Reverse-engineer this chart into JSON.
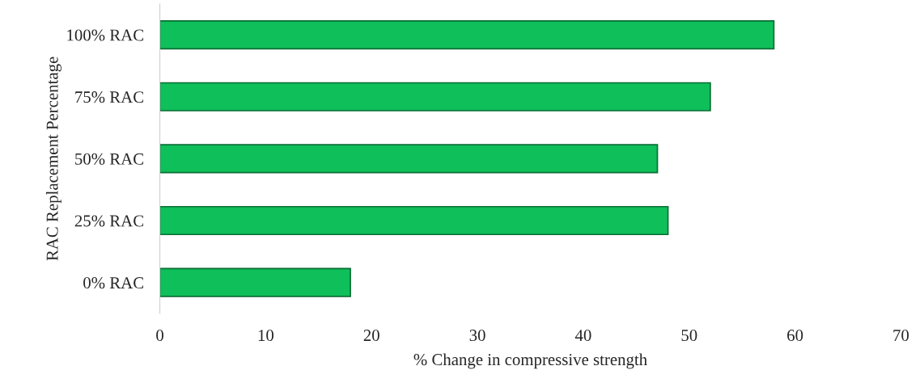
{
  "chart_data": {
    "type": "bar",
    "orientation": "horizontal",
    "categories": [
      "100% RAC",
      "75% RAC",
      "50% RAC",
      "25% RAC",
      "0% RAC"
    ],
    "values": [
      58,
      52,
      47,
      48,
      18
    ],
    "color": "#0fbf5a",
    "xlabel": "% Change in compressive strength",
    "ylabel": "RAC Replacement Percentage",
    "xlim": [
      0,
      70
    ],
    "xticks": [
      0,
      10,
      20,
      30,
      40,
      50,
      60,
      70
    ],
    "grid": false,
    "legend": false
  }
}
